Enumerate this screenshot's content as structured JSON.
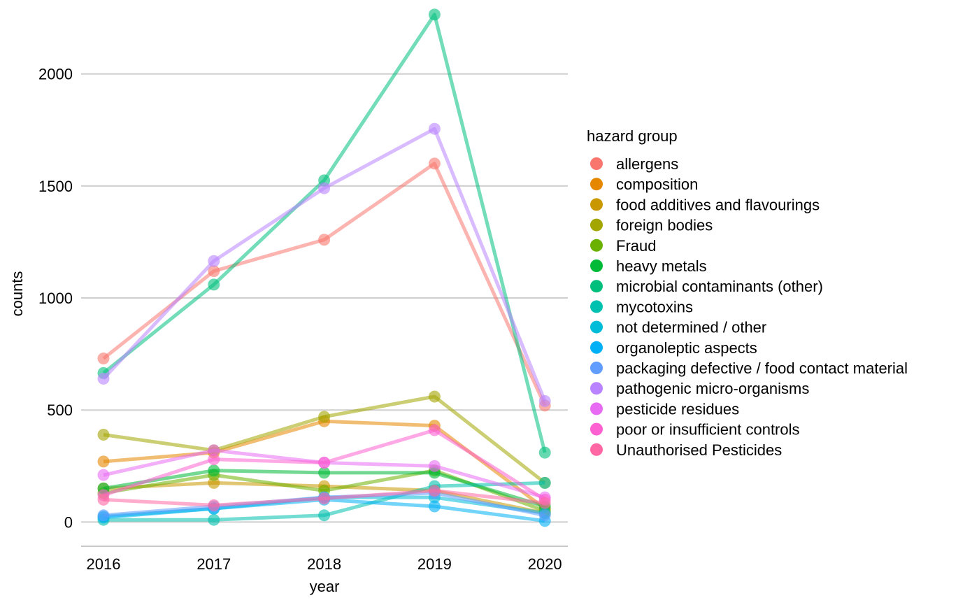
{
  "chart_data": {
    "type": "line",
    "title": "",
    "xlabel": "year",
    "ylabel": "counts",
    "x": [
      2016,
      2017,
      2018,
      2019,
      2020
    ],
    "x_ticks": [
      "2016",
      "2017",
      "2018",
      "2019",
      "2020"
    ],
    "y_ticks": [
      "0",
      "500",
      "1000",
      "1500",
      "2000"
    ],
    "ylim": [
      -108,
      2330
    ],
    "grid": "horizontal major",
    "legend": {
      "title": "hazard group",
      "position": "right"
    },
    "series": [
      {
        "name": "allergens",
        "color": "#F8766D",
        "values": [
          730,
          1120,
          1260,
          1600,
          520
        ]
      },
      {
        "name": "composition",
        "color": "#E58700",
        "values": [
          270,
          310,
          450,
          430,
          60
        ]
      },
      {
        "name": "food additives and flavourings",
        "color": "#C99800",
        "values": [
          150,
          175,
          160,
          140,
          40
        ]
      },
      {
        "name": "foreign bodies",
        "color": "#A3A500",
        "values": [
          390,
          320,
          470,
          560,
          175
        ]
      },
      {
        "name": "Fraud",
        "color": "#6BB100",
        "values": [
          130,
          210,
          140,
          230,
          50
        ]
      },
      {
        "name": "heavy metals",
        "color": "#00BA38",
        "values": [
          150,
          230,
          220,
          220,
          70
        ]
      },
      {
        "name": "microbial contaminants (other)",
        "color": "#00BF7D",
        "values": [
          665,
          1060,
          1525,
          2265,
          310
        ]
      },
      {
        "name": "mycotoxins",
        "color": "#00C0AF",
        "values": [
          10,
          10,
          30,
          160,
          175
        ]
      },
      {
        "name": "not determined / other",
        "color": "#00BCD8",
        "values": [
          25,
          60,
          110,
          110,
          40
        ]
      },
      {
        "name": "organoleptic aspects",
        "color": "#00B0F6",
        "values": [
          20,
          60,
          100,
          70,
          5
        ]
      },
      {
        "name": "packaging defective / food contact material",
        "color": "#619CFF",
        "values": [
          30,
          70,
          110,
          130,
          30
        ]
      },
      {
        "name": "pathogenic micro-organisms",
        "color": "#B983FF",
        "values": [
          640,
          1165,
          1490,
          1755,
          540
        ]
      },
      {
        "name": "pesticide residues",
        "color": "#E76BF3",
        "values": [
          210,
          320,
          265,
          250,
          110
        ]
      },
      {
        "name": "poor or insufficient controls",
        "color": "#FD61D1",
        "values": [
          120,
          280,
          265,
          410,
          100
        ]
      },
      {
        "name": "Unauthorised Pesticides",
        "color": "#FF67A4",
        "values": [
          100,
          75,
          105,
          140,
          85
        ]
      }
    ]
  }
}
